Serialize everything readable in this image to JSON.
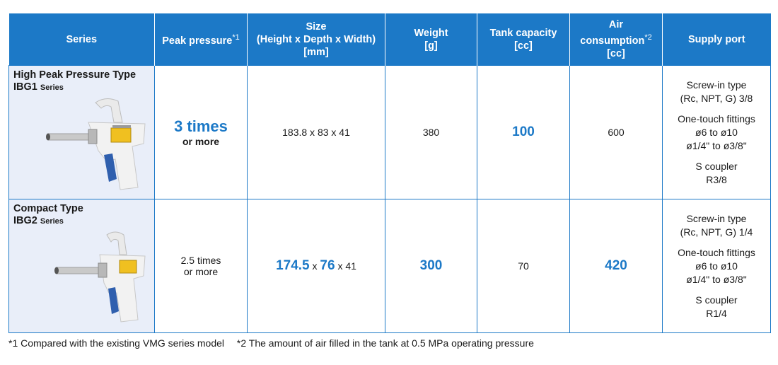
{
  "headers": {
    "series": "Series",
    "peak_pressure": "Peak pressure",
    "peak_note": "*1",
    "size_l1": "Size",
    "size_l2": "(Height x Depth x Width)",
    "size_l3": "[mm]",
    "weight_l1": "Weight",
    "weight_l2": "[g]",
    "tank_l1": "Tank capacity",
    "tank_l2": "[cc]",
    "air_l1": "Air",
    "air_l2": "consumption",
    "air_note": "*2",
    "air_l3": "[cc]",
    "supply": "Supply port"
  },
  "rows": [
    {
      "type_name": "High Peak Pressure Type",
      "model": "IBG1",
      "model_suffix": "Series",
      "peak_big": "3 times",
      "peak_small": "or more",
      "size": "183.8 x 83 x 41",
      "weight": "380",
      "tank": "100",
      "air": "600",
      "port": {
        "screw_l1": "Screw-in type",
        "screw_l2": "(Rc, NPT, G) 3/8",
        "touch_l1": "One-touch fittings",
        "touch_l2": "ø6 to ø10",
        "touch_l3": "ø1/4\" to ø3/8\"",
        "coupler_l1": "S coupler",
        "coupler_l2": "R3/8"
      }
    },
    {
      "type_name": "Compact Type",
      "model": "IBG2",
      "model_suffix": "Series",
      "peak_l1": "2.5 times",
      "peak_l2": "or more",
      "size_h": "174.5",
      "size_x1": "x",
      "size_d": "76",
      "size_x2": "x",
      "size_w": "41",
      "weight": "300",
      "tank": "70",
      "air": "420",
      "port": {
        "screw_l1": "Screw-in type",
        "screw_l2": "(Rc, NPT, G) 1/4",
        "touch_l1": "One-touch fittings",
        "touch_l2": "ø6 to ø10",
        "touch_l3": "ø1/4\" to ø3/8\"",
        "coupler_l1": "S coupler",
        "coupler_l2": "R1/4"
      }
    }
  ],
  "footnotes": {
    "n1": "*1  Compared with the existing VMG series model",
    "n2": "*2  The amount of air filled in the tank at 0.5 MPa operating pressure"
  },
  "colors": {
    "accent": "#1c79c7",
    "series_bg": "#e9eef9",
    "grip": "#2f5fae"
  }
}
